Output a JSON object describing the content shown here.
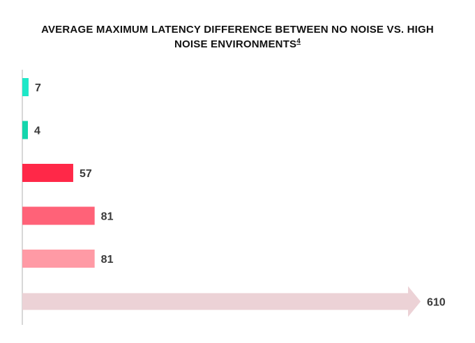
{
  "chart_data": {
    "type": "bar",
    "orientation": "horizontal",
    "title_line1": "AVERAGE MAXIMUM LATENCY DIFFERENCE BETWEEN NO NOISE VS. HIGH",
    "title_line2": "NOISE ENVIRONMENTS",
    "title_footnote": "4",
    "xlabel": "",
    "ylabel": "",
    "grid": false,
    "legend": "none",
    "bars": [
      {
        "value": 7,
        "label": "7",
        "color": "#1ee8c8",
        "shape": "bar"
      },
      {
        "value": 4,
        "label": "4",
        "color": "#14d6ad",
        "shape": "bar"
      },
      {
        "value": 57,
        "label": "57",
        "color": "#ff2848",
        "shape": "bar"
      },
      {
        "value": 81,
        "label": "81",
        "color": "#ff6278",
        "shape": "bar"
      },
      {
        "value": 81,
        "label": "81",
        "color": "#ff9aa5",
        "shape": "bar"
      },
      {
        "value": 610,
        "label": "610",
        "color": "#ecd2d6",
        "shape": "arrow",
        "truncated": true
      }
    ],
    "axis_color": "#cccccc"
  }
}
